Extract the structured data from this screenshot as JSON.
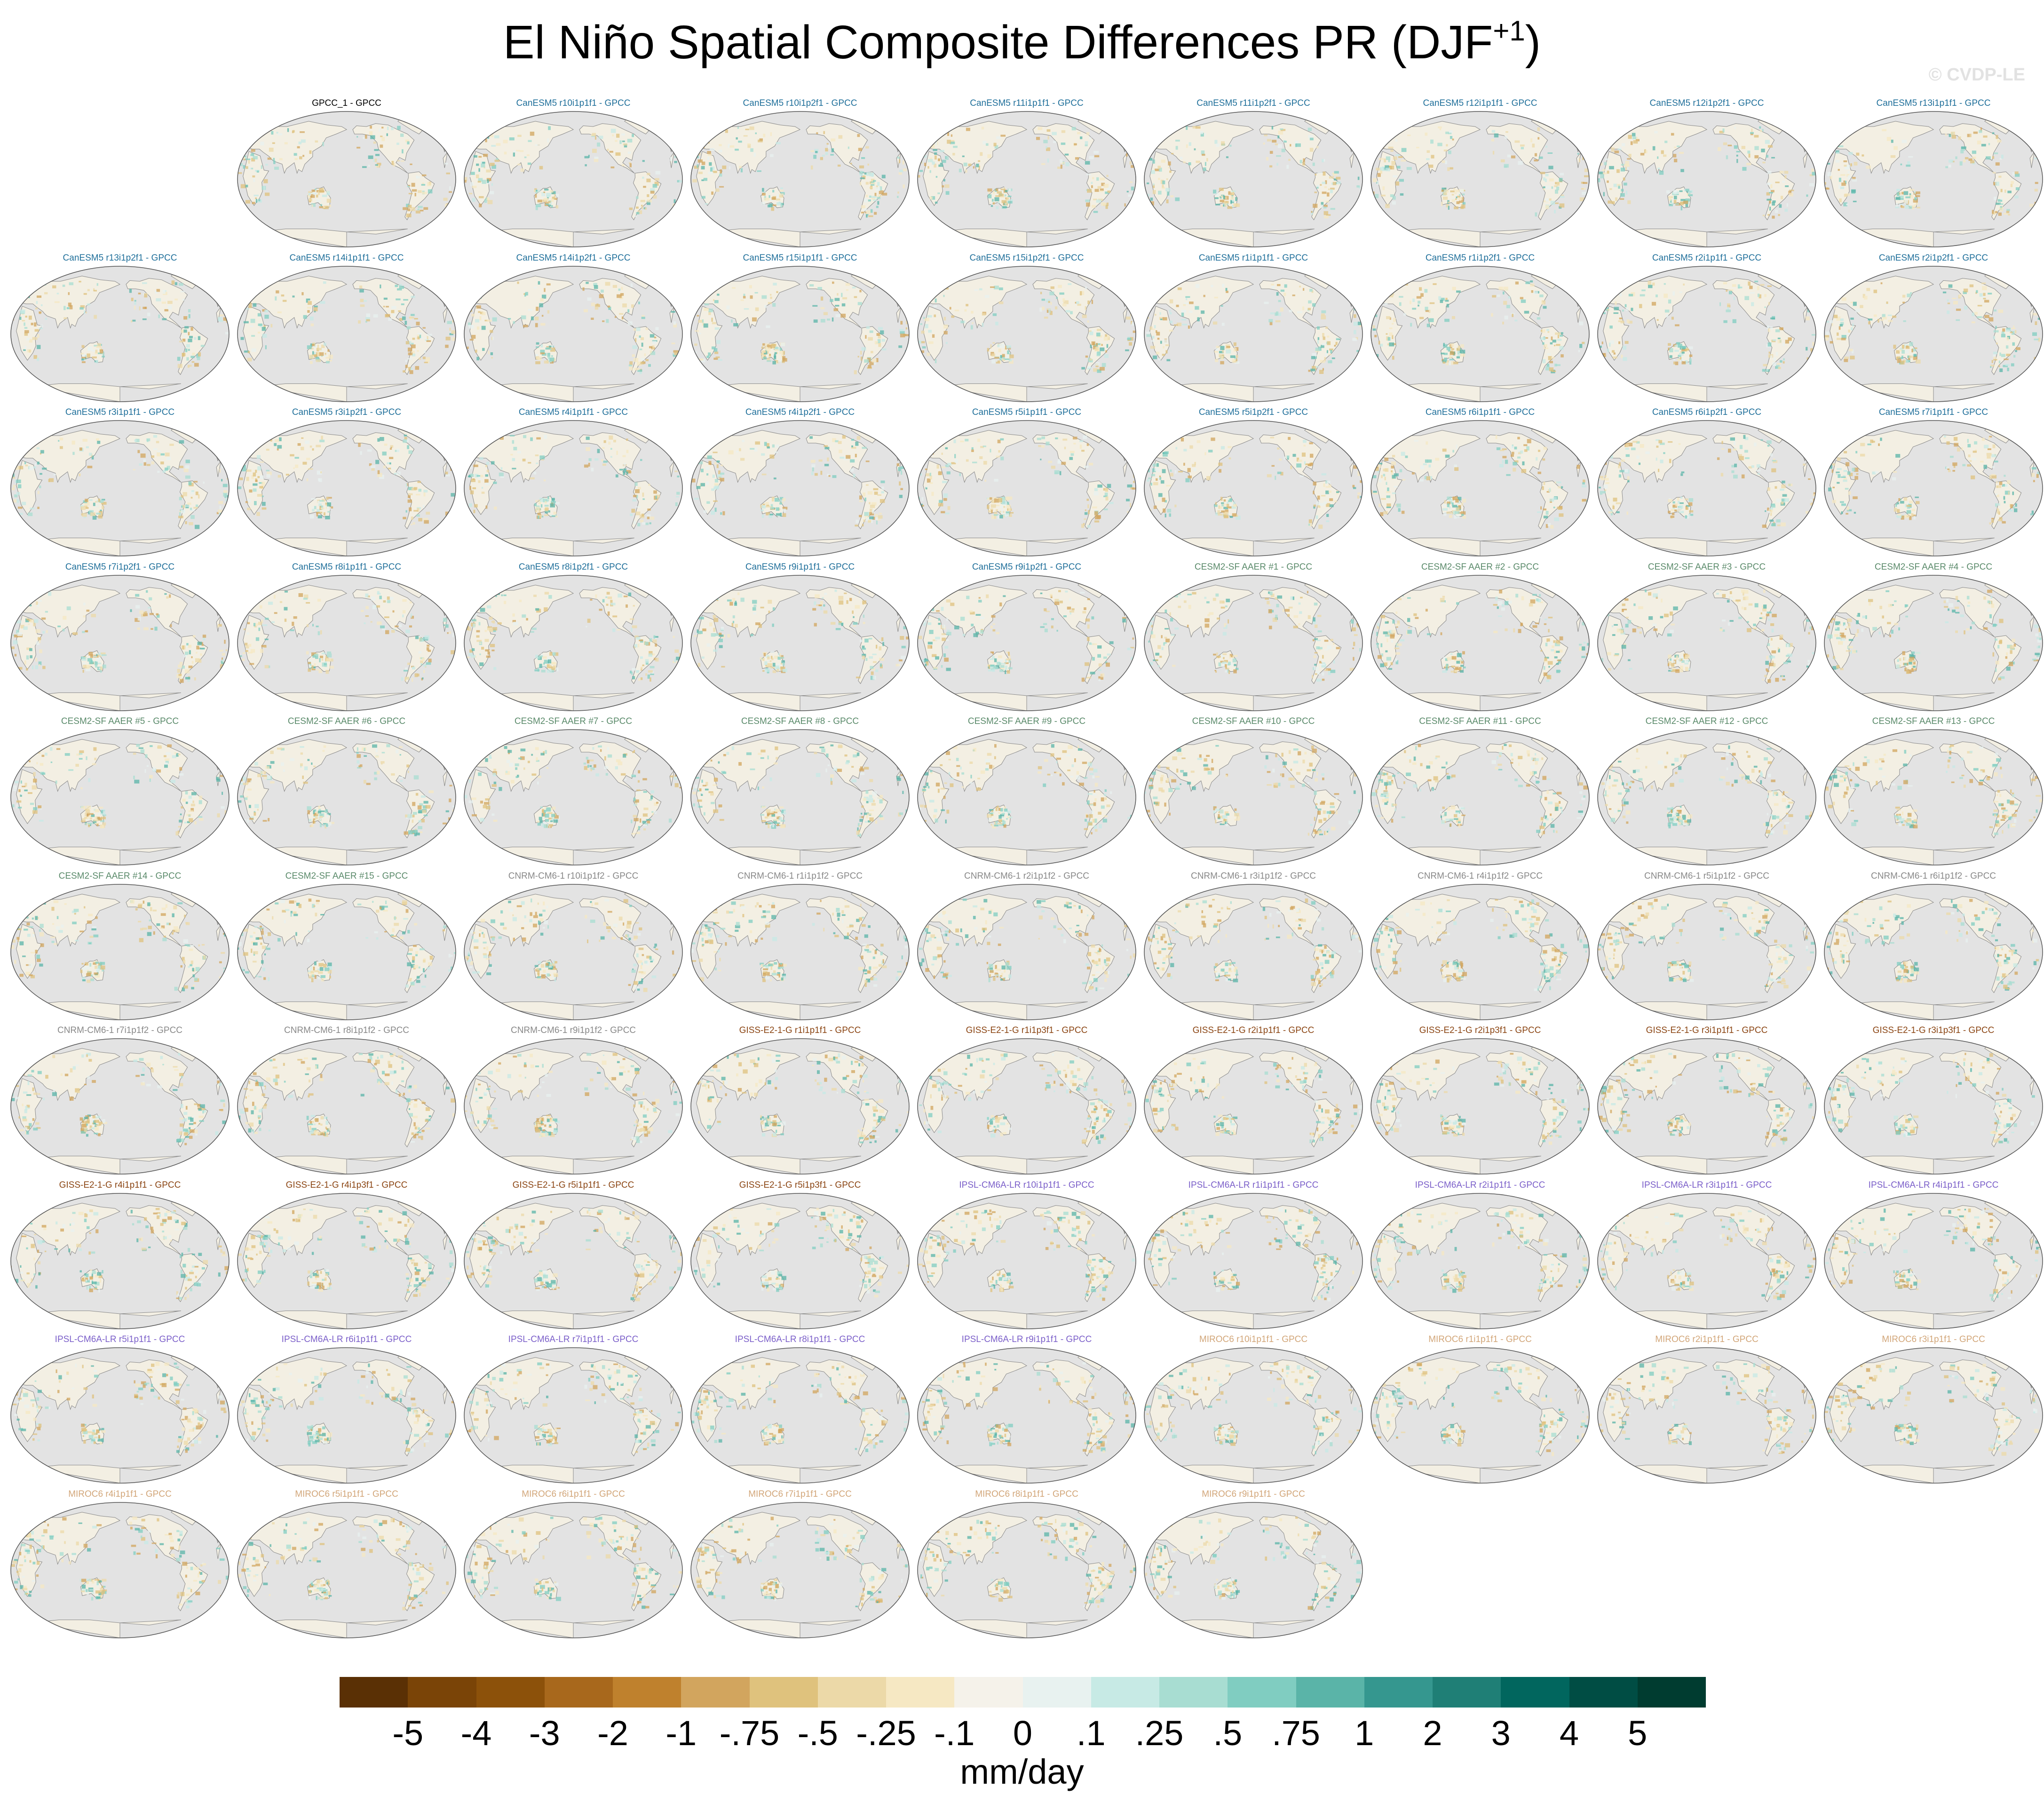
{
  "figure": {
    "title": "El Niño Spatial Composite Differences PR (DJF",
    "title_superscript": "+1",
    "title_close": ")",
    "watermark": "© CVDP-LE"
  },
  "panels": [
    {
      "label": "GPCC_1 - GPCC",
      "model": "GPCC"
    },
    {
      "label": "CanESM5 r10i1p1f1 - GPCC",
      "model": "CanESM5"
    },
    {
      "label": "CanESM5 r10i1p2f1 - GPCC",
      "model": "CanESM5"
    },
    {
      "label": "CanESM5 r11i1p1f1 - GPCC",
      "model": "CanESM5"
    },
    {
      "label": "CanESM5 r11i1p2f1 - GPCC",
      "model": "CanESM5"
    },
    {
      "label": "CanESM5 r12i1p1f1 - GPCC",
      "model": "CanESM5"
    },
    {
      "label": "CanESM5 r12i1p2f1 - GPCC",
      "model": "CanESM5"
    },
    {
      "label": "CanESM5 r13i1p1f1 - GPCC",
      "model": "CanESM5"
    },
    {
      "label": "CanESM5 r13i1p2f1 - GPCC",
      "model": "CanESM5"
    },
    {
      "label": "CanESM5 r14i1p1f1 - GPCC",
      "model": "CanESM5"
    },
    {
      "label": "CanESM5 r14i1p2f1 - GPCC",
      "model": "CanESM5"
    },
    {
      "label": "CanESM5 r15i1p1f1 - GPCC",
      "model": "CanESM5"
    },
    {
      "label": "CanESM5 r15i1p2f1 - GPCC",
      "model": "CanESM5"
    },
    {
      "label": "CanESM5 r1i1p1f1 - GPCC",
      "model": "CanESM5"
    },
    {
      "label": "CanESM5 r1i1p2f1 - GPCC",
      "model": "CanESM5"
    },
    {
      "label": "CanESM5 r2i1p1f1 - GPCC",
      "model": "CanESM5"
    },
    {
      "label": "CanESM5 r2i1p2f1 - GPCC",
      "model": "CanESM5"
    },
    {
      "label": "CanESM5 r3i1p1f1 - GPCC",
      "model": "CanESM5"
    },
    {
      "label": "CanESM5 r3i1p2f1 - GPCC",
      "model": "CanESM5"
    },
    {
      "label": "CanESM5 r4i1p1f1 - GPCC",
      "model": "CanESM5"
    },
    {
      "label": "CanESM5 r4i1p2f1 - GPCC",
      "model": "CanESM5"
    },
    {
      "label": "CanESM5 r5i1p1f1 - GPCC",
      "model": "CanESM5"
    },
    {
      "label": "CanESM5 r5i1p2f1 - GPCC",
      "model": "CanESM5"
    },
    {
      "label": "CanESM5 r6i1p1f1 - GPCC",
      "model": "CanESM5"
    },
    {
      "label": "CanESM5 r6i1p2f1 - GPCC",
      "model": "CanESM5"
    },
    {
      "label": "CanESM5 r7i1p1f1 - GPCC",
      "model": "CanESM5"
    },
    {
      "label": "CanESM5 r7i1p2f1 - GPCC",
      "model": "CanESM5"
    },
    {
      "label": "CanESM5 r8i1p1f1 - GPCC",
      "model": "CanESM5"
    },
    {
      "label": "CanESM5 r8i1p2f1 - GPCC",
      "model": "CanESM5"
    },
    {
      "label": "CanESM5 r9i1p1f1 - GPCC",
      "model": "CanESM5"
    },
    {
      "label": "CanESM5 r9i1p2f1 - GPCC",
      "model": "CanESM5"
    },
    {
      "label": "CESM2-SF AAER #1 - GPCC",
      "model": "CESM2-SF AAER"
    },
    {
      "label": "CESM2-SF AAER #2 - GPCC",
      "model": "CESM2-SF AAER"
    },
    {
      "label": "CESM2-SF AAER #3 - GPCC",
      "model": "CESM2-SF AAER"
    },
    {
      "label": "CESM2-SF AAER #4 - GPCC",
      "model": "CESM2-SF AAER"
    },
    {
      "label": "CESM2-SF AAER #5 - GPCC",
      "model": "CESM2-SF AAER"
    },
    {
      "label": "CESM2-SF AAER #6 - GPCC",
      "model": "CESM2-SF AAER"
    },
    {
      "label": "CESM2-SF AAER #7 - GPCC",
      "model": "CESM2-SF AAER"
    },
    {
      "label": "CESM2-SF AAER #8 - GPCC",
      "model": "CESM2-SF AAER"
    },
    {
      "label": "CESM2-SF AAER #9 - GPCC",
      "model": "CESM2-SF AAER"
    },
    {
      "label": "CESM2-SF AAER #10 - GPCC",
      "model": "CESM2-SF AAER"
    },
    {
      "label": "CESM2-SF AAER #11 - GPCC",
      "model": "CESM2-SF AAER"
    },
    {
      "label": "CESM2-SF AAER #12 - GPCC",
      "model": "CESM2-SF AAER"
    },
    {
      "label": "CESM2-SF AAER #13 - GPCC",
      "model": "CESM2-SF AAER"
    },
    {
      "label": "CESM2-SF AAER #14 - GPCC",
      "model": "CESM2-SF AAER"
    },
    {
      "label": "CESM2-SF AAER #15 - GPCC",
      "model": "CESM2-SF AAER"
    },
    {
      "label": "CNRM-CM6-1 r10i1p1f2 - GPCC",
      "model": "CNRM-CM6-1"
    },
    {
      "label": "CNRM-CM6-1 r1i1p1f2 - GPCC",
      "model": "CNRM-CM6-1"
    },
    {
      "label": "CNRM-CM6-1 r2i1p1f2 - GPCC",
      "model": "CNRM-CM6-1"
    },
    {
      "label": "CNRM-CM6-1 r3i1p1f2 - GPCC",
      "model": "CNRM-CM6-1"
    },
    {
      "label": "CNRM-CM6-1 r4i1p1f2 - GPCC",
      "model": "CNRM-CM6-1"
    },
    {
      "label": "CNRM-CM6-1 r5i1p1f2 - GPCC",
      "model": "CNRM-CM6-1"
    },
    {
      "label": "CNRM-CM6-1 r6i1p1f2 - GPCC",
      "model": "CNRM-CM6-1"
    },
    {
      "label": "CNRM-CM6-1 r7i1p1f2 - GPCC",
      "model": "CNRM-CM6-1"
    },
    {
      "label": "CNRM-CM6-1 r8i1p1f2 - GPCC",
      "model": "CNRM-CM6-1"
    },
    {
      "label": "CNRM-CM6-1 r9i1p1f2 - GPCC",
      "model": "CNRM-CM6-1"
    },
    {
      "label": "GISS-E2-1-G r1i1p1f1 - GPCC",
      "model": "GISS-E2-1-G"
    },
    {
      "label": "GISS-E2-1-G r1i1p3f1 - GPCC",
      "model": "GISS-E2-1-G"
    },
    {
      "label": "GISS-E2-1-G r2i1p1f1 - GPCC",
      "model": "GISS-E2-1-G"
    },
    {
      "label": "GISS-E2-1-G r2i1p3f1 - GPCC",
      "model": "GISS-E2-1-G"
    },
    {
      "label": "GISS-E2-1-G r3i1p1f1 - GPCC",
      "model": "GISS-E2-1-G"
    },
    {
      "label": "GISS-E2-1-G r3i1p3f1 - GPCC",
      "model": "GISS-E2-1-G"
    },
    {
      "label": "GISS-E2-1-G r4i1p1f1 - GPCC",
      "model": "GISS-E2-1-G"
    },
    {
      "label": "GISS-E2-1-G r4i1p3f1 - GPCC",
      "model": "GISS-E2-1-G"
    },
    {
      "label": "GISS-E2-1-G r5i1p1f1 - GPCC",
      "model": "GISS-E2-1-G"
    },
    {
      "label": "GISS-E2-1-G r5i1p3f1 - GPCC",
      "model": "GISS-E2-1-G"
    },
    {
      "label": "IPSL-CM6A-LR r10i1p1f1 - GPCC",
      "model": "IPSL-CM6A-LR"
    },
    {
      "label": "IPSL-CM6A-LR r1i1p1f1 - GPCC",
      "model": "IPSL-CM6A-LR"
    },
    {
      "label": "IPSL-CM6A-LR r2i1p1f1 - GPCC",
      "model": "IPSL-CM6A-LR"
    },
    {
      "label": "IPSL-CM6A-LR r3i1p1f1 - GPCC",
      "model": "IPSL-CM6A-LR"
    },
    {
      "label": "IPSL-CM6A-LR r4i1p1f1 - GPCC",
      "model": "IPSL-CM6A-LR"
    },
    {
      "label": "IPSL-CM6A-LR r5i1p1f1 - GPCC",
      "model": "IPSL-CM6A-LR"
    },
    {
      "label": "IPSL-CM6A-LR r6i1p1f1 - GPCC",
      "model": "IPSL-CM6A-LR"
    },
    {
      "label": "IPSL-CM6A-LR r7i1p1f1 - GPCC",
      "model": "IPSL-CM6A-LR"
    },
    {
      "label": "IPSL-CM6A-LR r8i1p1f1 - GPCC",
      "model": "IPSL-CM6A-LR"
    },
    {
      "label": "IPSL-CM6A-LR r9i1p1f1 - GPCC",
      "model": "IPSL-CM6A-LR"
    },
    {
      "label": "MIROC6 r10i1p1f1 - GPCC",
      "model": "MIROC6"
    },
    {
      "label": "MIROC6 r1i1p1f1 - GPCC",
      "model": "MIROC6"
    },
    {
      "label": "MIROC6 r2i1p1f1 - GPCC",
      "model": "MIROC6"
    },
    {
      "label": "MIROC6 r3i1p1f1 - GPCC",
      "model": "MIROC6"
    },
    {
      "label": "MIROC6 r4i1p1f1 - GPCC",
      "model": "MIROC6"
    },
    {
      "label": "MIROC6 r5i1p1f1 - GPCC",
      "model": "MIROC6"
    },
    {
      "label": "MIROC6 r6i1p1f1 - GPCC",
      "model": "MIROC6"
    },
    {
      "label": "MIROC6 r7i1p1f1 - GPCC",
      "model": "MIROC6"
    },
    {
      "label": "MIROC6 r8i1p1f1 - GPCC",
      "model": "MIROC6"
    },
    {
      "label": "MIROC6 r9i1p1f1 - GPCC",
      "model": "MIROC6"
    }
  ],
  "model_label_colors": {
    "GPCC": "#000000",
    "CanESM5": "#1f6f9a",
    "CESM2-SF AAER": "#5a8a6a",
    "CNRM-CM6-1": "#888888",
    "GISS-E2-1-G": "#8b4513",
    "IPSL-CM6A-LR": "#7b5fc9",
    "MIROC6": "#d2a679"
  },
  "map_colors": {
    "ocean": "#e3e3e3",
    "land_base": "#f3efe3",
    "coastline": "#8a8a8a",
    "outline": "#555555"
  },
  "colorbar": {
    "levels": [
      "-5",
      "-4",
      "-3",
      "-2",
      "-1",
      "-.75",
      "-.5",
      "-.25",
      "-.1",
      "0",
      ".1",
      ".25",
      ".5",
      ".75",
      "1",
      "2",
      "3",
      "4",
      "5"
    ],
    "colors": [
      "#5a3005",
      "#7a4407",
      "#8c510a",
      "#a8681c",
      "#bf812d",
      "#d2a55e",
      "#dfc27d",
      "#ecd9a8",
      "#f6e8c3",
      "#f5f2ea",
      "#e8f2f0",
      "#c7eae5",
      "#a8ddd2",
      "#80cdc1",
      "#5ab4a8",
      "#35978f",
      "#1f7f76",
      "#01665e",
      "#004d44",
      "#003c30"
    ],
    "units": "mm/day"
  }
}
